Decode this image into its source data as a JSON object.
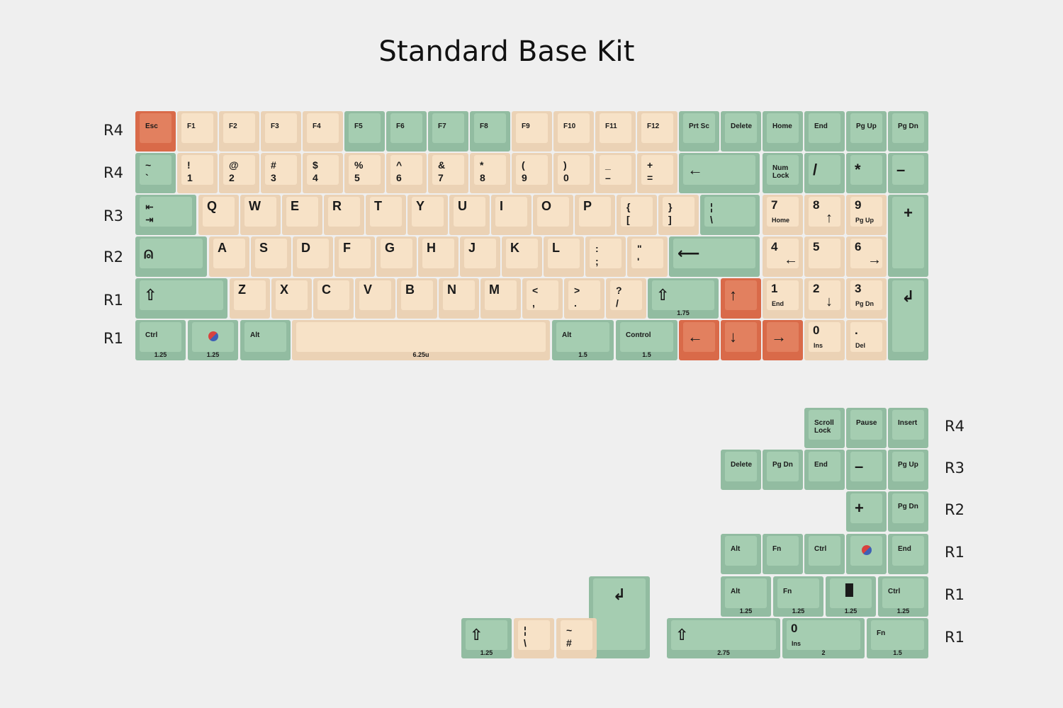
{
  "title": "Standard Base Kit",
  "colors": {
    "green": "#a5cdb1",
    "cream": "#f7e2c7",
    "orange": "#e2805f"
  },
  "row_labels": {
    "main": [
      "R4",
      "R4",
      "R3",
      "R2",
      "R1",
      "R1"
    ],
    "extras": [
      "R4",
      "R3",
      "R2",
      "R1",
      "R1",
      "R1"
    ]
  },
  "keys": {
    "esc": "Esc",
    "f1": "F1",
    "f2": "F2",
    "f3": "F3",
    "f4": "F4",
    "f5": "F5",
    "f6": "F6",
    "f7": "F7",
    "f8": "F8",
    "f9": "F9",
    "f10": "F10",
    "f11": "F11",
    "f12": "F12",
    "prtsc": "Prt Sc",
    "delete": "Delete",
    "home": "Home",
    "end": "End",
    "pgup": "Pg Up",
    "pgdn": "Pg Dn",
    "grave": "~\n`",
    "n1": "!\n1",
    "n2": "@\n2",
    "n3": "#\n3",
    "n4": "$\n4",
    "n5": "%\n5",
    "n6": "^\n6",
    "n7": "&\n7",
    "n8": "*\n8",
    "n9": "(\n9",
    "n0": ")\n0",
    "minus": "_\n–",
    "equal": "+\n=",
    "backspace": "←",
    "numlock": "Num\nLock",
    "slash_np": "/",
    "star_np": "*",
    "minus_np": "–",
    "tab": "⇤\n⇥",
    "q": "Q",
    "w": "W",
    "e": "E",
    "r": "R",
    "t": "T",
    "y": "Y",
    "u": "U",
    "i": "I",
    "o": "O",
    "p": "P",
    "lbracket": "{\n[",
    "rbracket": "}\n]",
    "backslash": "¦\n\\",
    "np7": "7",
    "np7_sub": "Home",
    "np8": "8",
    "np8_sub": "↑",
    "np9": "9",
    "np9_sub": "Pg Up",
    "plus_np": "+",
    "caps": "⍝",
    "a": "A",
    "s": "S",
    "d": "D",
    "f": "F",
    "g": "G",
    "h": "H",
    "j": "J",
    "k": "K",
    "l": "L",
    "semicolon": ":\n;",
    "quote": "\"\n'",
    "enter": "⟵",
    "np4": "4",
    "np4_sub": "←",
    "np5": "5",
    "np6": "6",
    "np6_sub": "→",
    "lshift": "⇧",
    "z": "Z",
    "x": "X",
    "c": "C",
    "v": "V",
    "b": "B",
    "n": "N",
    "m": "M",
    "comma": "<\n,",
    "period": ">\n.",
    "slash": "?\n/",
    "rshift": "⇧",
    "rshift_u": "1.75",
    "up": "↑",
    "np1": "1",
    "np1_sub": "End",
    "np2": "2",
    "np2_sub": "↓",
    "np3": "3",
    "np3_sub": "Pg Dn",
    "npenter": "↲",
    "ctrl": "Ctrl",
    "ctrl_u": "1.25",
    "win_u": "1.25",
    "alt": "Alt",
    "space_u": "6.25u",
    "ralt": "Alt",
    "ralt_u": "1.5",
    "control": "Control",
    "control_u": "1.5",
    "left": "←",
    "down": "↓",
    "right": "→",
    "np0": "0",
    "np0_sub": "Ins",
    "npdot": ".",
    "npdot_sub": "Del"
  },
  "extras": {
    "scroll": "Scroll\nLock",
    "pause": "Pause",
    "insert": "Insert",
    "delete": "Delete",
    "pgdn": "Pg Dn",
    "end": "End",
    "minus": "–",
    "pgup": "Pg Up",
    "plus": "+",
    "pgdn2": "Pg Dn",
    "alt": "Alt",
    "fn": "Fn",
    "ctrl": "Ctrl",
    "end2": "End",
    "alt125": "Alt",
    "alt125_u": "1.25",
    "fn125": "Fn",
    "fn125_u": "1.25",
    "menu_u": "1.25",
    "ctrl125": "Ctrl",
    "ctrl125_u": "1.25",
    "enter": "↲",
    "shift125": "⇧",
    "shift125_u": "1.25",
    "pipe": "¦\n\\",
    "tilde": "~\n#",
    "shift275": "⇧",
    "shift275_u": "2.75",
    "zero": "0",
    "zero_sub": "Ins",
    "zero_u": "2",
    "fn15": "Fn",
    "fn15_u": "1.5"
  }
}
